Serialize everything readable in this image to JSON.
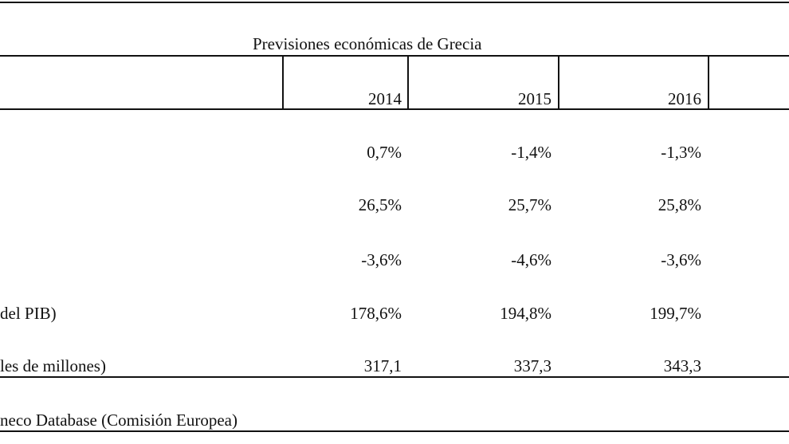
{
  "table": {
    "title": "Previsiones económicas de Grecia",
    "years": [
      "2014",
      "2015",
      "2016"
    ],
    "rows": [
      {
        "label": "",
        "values": [
          "0,7%",
          "-1,4%",
          "-1,3%"
        ]
      },
      {
        "label": "",
        "values": [
          "26,5%",
          "25,7%",
          "25,8%"
        ]
      },
      {
        "label": "",
        "values": [
          "-3,6%",
          "-4,6%",
          "-3,6%"
        ]
      },
      {
        "label": "del PIB)",
        "values": [
          "178,6%",
          "194,8%",
          "199,7%"
        ]
      },
      {
        "label": "les de millones)",
        "values": [
          "317,1",
          "337,3",
          "343,3"
        ]
      }
    ],
    "source": "neco Database (Comisión Europea)"
  }
}
